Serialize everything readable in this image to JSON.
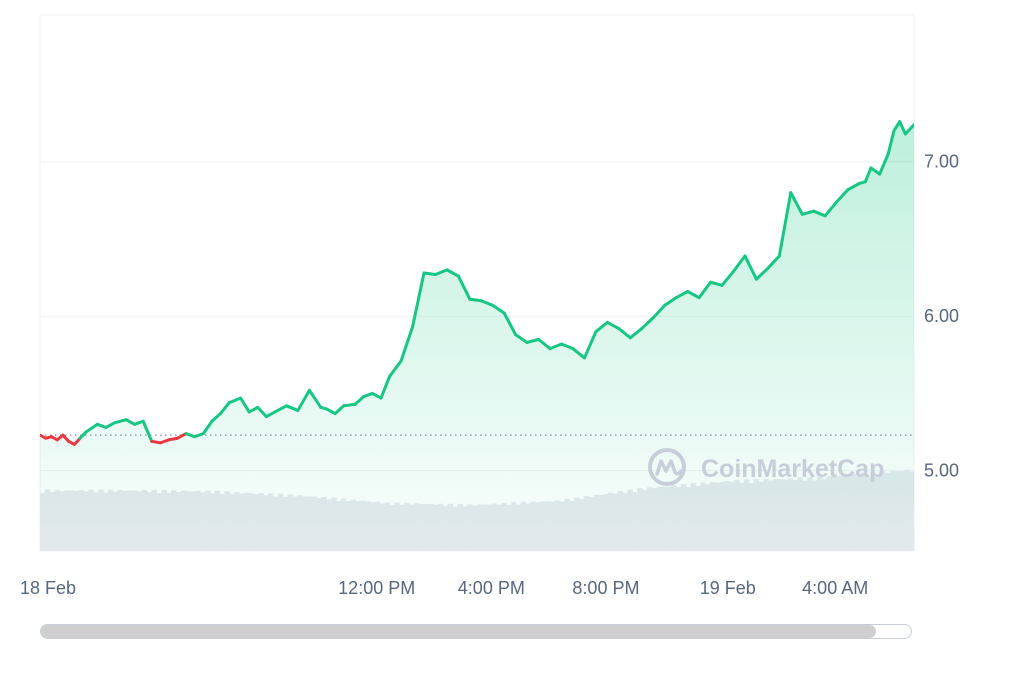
{
  "chart_data": {
    "type": "line",
    "y_ticks": [
      "7.00",
      "6.00",
      "5.00"
    ],
    "y_tick_values": [
      7.0,
      6.0,
      5.0
    ],
    "x_ticks": [
      "18 Feb",
      "12:00 PM",
      "4:00 PM",
      "8:00 PM",
      "19 Feb",
      "4:00 AM"
    ],
    "x_tick_hours": [
      0,
      11.75,
      15.75,
      19.75,
      24,
      27.75
    ],
    "ylim": [
      4.48,
      7.95
    ],
    "xlim": [
      0,
      30.5
    ],
    "reference_price": 5.23,
    "grid": "horizontal",
    "series": [
      {
        "x": [
          0,
          0.2,
          0.4,
          0.6,
          0.8,
          1.0,
          1.2,
          1.4,
          1.6,
          2.0,
          2.3,
          2.6,
          3.0,
          3.3,
          3.6,
          3.9,
          4.2,
          4.5,
          4.8,
          5.1,
          5.4,
          5.7,
          6.0,
          6.3,
          6.6,
          7.0,
          7.3,
          7.6,
          7.9,
          8.2,
          8.6,
          9.0,
          9.4,
          9.8,
          10.0,
          10.3,
          10.6,
          11.0,
          11.3,
          11.6,
          11.9,
          12.2,
          12.6,
          13.0,
          13.4,
          13.8,
          14.2,
          14.6,
          15.0,
          15.4,
          15.8,
          16.2,
          16.6,
          17.0,
          17.4,
          17.8,
          18.2,
          18.6,
          19.0,
          19.4,
          19.8,
          20.2,
          20.6,
          21.0,
          21.4,
          21.8,
          22.2,
          22.6,
          23.0,
          23.4,
          23.8,
          24.2,
          24.6,
          25.0,
          25.4,
          25.8,
          26.2,
          26.6,
          27.0,
          27.4,
          27.8,
          28.2,
          28.6,
          28.8,
          29.0,
          29.3,
          29.6,
          29.8,
          30.0,
          30.2,
          30.5
        ],
        "values": [
          5.23,
          5.21,
          5.22,
          5.2,
          5.23,
          5.19,
          5.17,
          5.21,
          5.25,
          5.3,
          5.28,
          5.31,
          5.33,
          5.3,
          5.32,
          5.19,
          5.18,
          5.2,
          5.21,
          5.24,
          5.22,
          5.24,
          5.32,
          5.37,
          5.44,
          5.47,
          5.38,
          5.41,
          5.35,
          5.38,
          5.42,
          5.39,
          5.52,
          5.41,
          5.4,
          5.37,
          5.42,
          5.43,
          5.48,
          5.5,
          5.47,
          5.61,
          5.71,
          5.93,
          6.28,
          6.27,
          6.3,
          6.26,
          6.11,
          6.1,
          6.07,
          6.02,
          5.88,
          5.83,
          5.85,
          5.79,
          5.82,
          5.79,
          5.73,
          5.9,
          5.96,
          5.92,
          5.86,
          5.92,
          5.99,
          6.07,
          6.12,
          6.16,
          6.12,
          6.22,
          6.2,
          6.29,
          6.39,
          6.24,
          6.31,
          6.39,
          6.8,
          6.66,
          6.68,
          6.65,
          6.74,
          6.82,
          6.86,
          6.87,
          6.96,
          6.92,
          7.05,
          7.2,
          7.26,
          7.18,
          7.24
        ]
      }
    ],
    "volume": {
      "x": [
        0,
        3,
        6,
        9,
        12,
        15,
        18,
        21,
        24,
        27,
        30.5
      ],
      "values": [
        0.58,
        0.58,
        0.57,
        0.53,
        0.46,
        0.44,
        0.48,
        0.6,
        0.67,
        0.7,
        0.78
      ]
    }
  },
  "watermark": {
    "text": "CoinMarketCap",
    "icon": "coinmarketcap-logo-icon"
  },
  "colors": {
    "up": "#16c784",
    "down": "#ea3943",
    "area_top": "#d5f5e6",
    "volume": "#e6e9ef",
    "grid": "#eff2f5"
  },
  "scrollbar": {
    "position_fraction": 0.96
  }
}
